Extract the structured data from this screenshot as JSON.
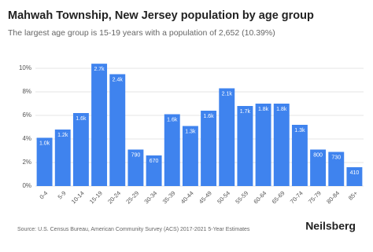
{
  "chart_data": {
    "type": "bar",
    "title": "Mahwah Township, New Jersey population by age group",
    "subtitle": "The largest age group is 15-19 years with a population of 2,652 (10.39%)",
    "categories": [
      "0-4",
      "5-9",
      "10-14",
      "15-19",
      "20-24",
      "25-29",
      "30-34",
      "35-39",
      "40-44",
      "45-49",
      "50-54",
      "55-59",
      "60-64",
      "65-69",
      "70-74",
      "75-79",
      "80-84",
      "85+"
    ],
    "values": [
      4.1,
      4.8,
      6.2,
      10.39,
      9.5,
      3.1,
      2.6,
      6.1,
      5.1,
      6.4,
      8.3,
      6.8,
      7.0,
      7.0,
      5.2,
      3.1,
      2.9,
      1.6
    ],
    "bar_labels": [
      "1.0k",
      "1.2k",
      "1.6k",
      "2.7k",
      "2.4k",
      "790",
      "670",
      "1.6k",
      "1.3k",
      "1.6k",
      "2.1k",
      "1.7k",
      "1.8k",
      "1.8k",
      "1.3k",
      "800",
      "730",
      "410"
    ],
    "color": "#3f83ee",
    "ylim": [
      0,
      10.8
    ],
    "yticks": [
      {
        "value": 0,
        "label": "0%"
      },
      {
        "value": 2,
        "label": "2%"
      },
      {
        "value": 4,
        "label": "4%"
      },
      {
        "value": 6,
        "label": "6%"
      },
      {
        "value": 8,
        "label": "8%"
      },
      {
        "value": 10,
        "label": "10%"
      }
    ],
    "grid": true,
    "source": "Source: U.S. Census Bureau, American Community Survey (ACS) 2017-2021 5-Year Estimates",
    "brand": "Neilsberg"
  }
}
